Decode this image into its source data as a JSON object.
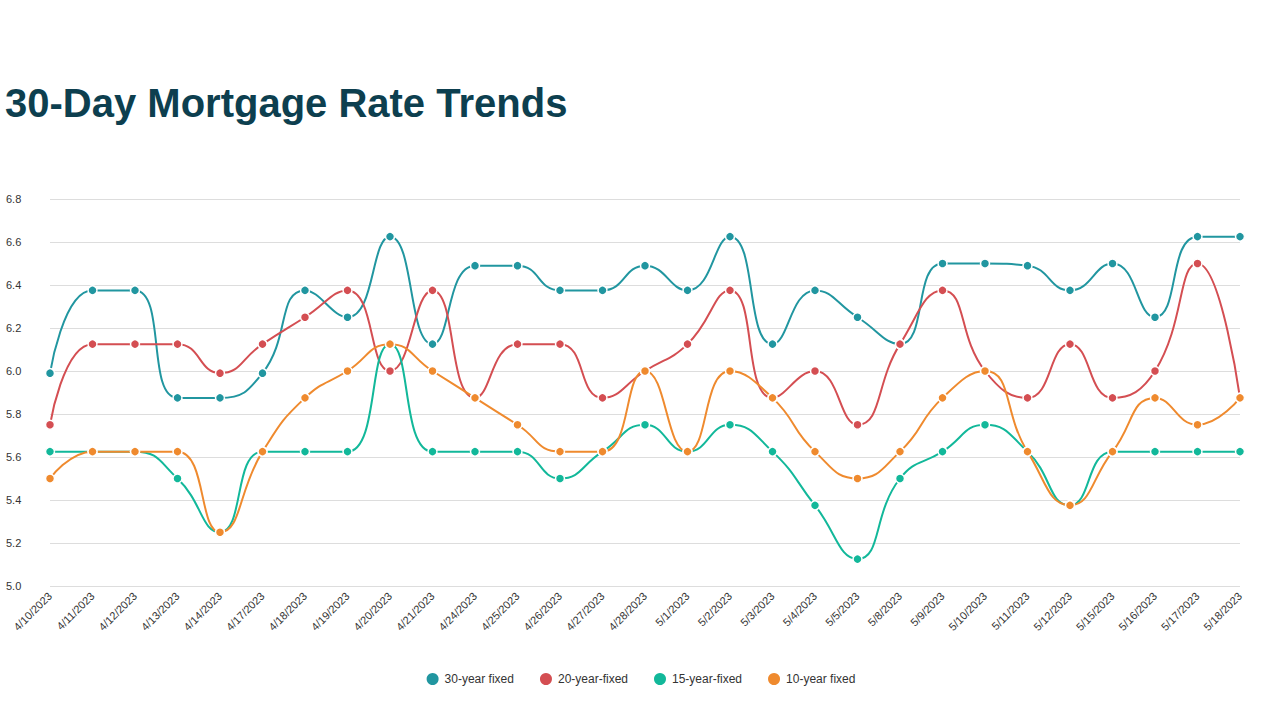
{
  "chart_data": {
    "type": "line",
    "title": "30-Day Mortgage Rate Trends",
    "categories": [
      "4/10/2023",
      "4/11/2023",
      "4/12/2023",
      "4/13/2023",
      "4/14/2023",
      "4/17/2023",
      "4/18/2023",
      "4/19/2023",
      "4/20/2023",
      "4/21/2023",
      "4/24/2023",
      "4/25/2023",
      "4/26/2023",
      "4/27/2023",
      "4/28/2023",
      "5/1/2023",
      "5/2/2023",
      "5/3/2023",
      "5/4/2023",
      "5/5/2023",
      "5/8/2023",
      "5/9/2023",
      "5/10/2023",
      "5/11/2023",
      "5/12/2023",
      "5/15/2023",
      "5/16/2023",
      "5/17/2023",
      "5/18/2023"
    ],
    "series": [
      {
        "name": "30-year fixed",
        "color": "#2196a0",
        "values": [
          5.99,
          6.375,
          6.375,
          5.875,
          5.875,
          5.99,
          6.375,
          6.25,
          6.625,
          6.125,
          6.49,
          6.49,
          6.375,
          6.375,
          6.49,
          6.375,
          6.625,
          6.125,
          6.375,
          6.25,
          6.125,
          6.5,
          6.5,
          6.49,
          6.375,
          6.5,
          6.25,
          6.625,
          6.625
        ]
      },
      {
        "name": "20-year-fixed",
        "color": "#d44e52",
        "values": [
          5.75,
          6.125,
          6.125,
          6.125,
          5.99,
          6.125,
          6.25,
          6.375,
          6.0,
          6.375,
          5.875,
          6.125,
          6.125,
          5.875,
          6.0,
          6.125,
          6.375,
          5.875,
          6.0,
          5.75,
          6.125,
          6.375,
          6.0,
          5.875,
          6.125,
          5.875,
          6.0,
          6.5,
          5.875
        ]
      },
      {
        "name": "15-year-fixed",
        "color": "#12b89a",
        "values": [
          5.625,
          5.625,
          5.625,
          5.5,
          5.25,
          5.625,
          5.625,
          5.625,
          6.125,
          5.625,
          5.625,
          5.625,
          5.5,
          5.625,
          5.75,
          5.625,
          5.75,
          5.625,
          5.375,
          5.125,
          5.5,
          5.625,
          5.75,
          5.625,
          5.375,
          5.625,
          5.625,
          5.625,
          5.625
        ]
      },
      {
        "name": "10-year fixed",
        "color": "#ef8a2e",
        "values": [
          5.5,
          5.625,
          5.625,
          5.625,
          5.25,
          5.625,
          5.875,
          6.0,
          6.125,
          6.0,
          5.875,
          5.75,
          5.625,
          5.625,
          6.0,
          5.625,
          6.0,
          5.875,
          5.625,
          5.5,
          5.625,
          5.875,
          6.0,
          5.625,
          5.375,
          5.625,
          5.875,
          5.75,
          5.875
        ]
      }
    ],
    "ylim": [
      5.0,
      6.8
    ],
    "yticks": [
      {
        "value": 5.0,
        "label": "5.0"
      },
      5.2,
      5.4,
      5.6,
      5.8,
      {
        "value": 6.0,
        "label": "6.0"
      },
      6.2,
      6.4,
      6.6,
      6.8
    ],
    "grid": true,
    "legend": "bottom",
    "marker": "circle"
  }
}
